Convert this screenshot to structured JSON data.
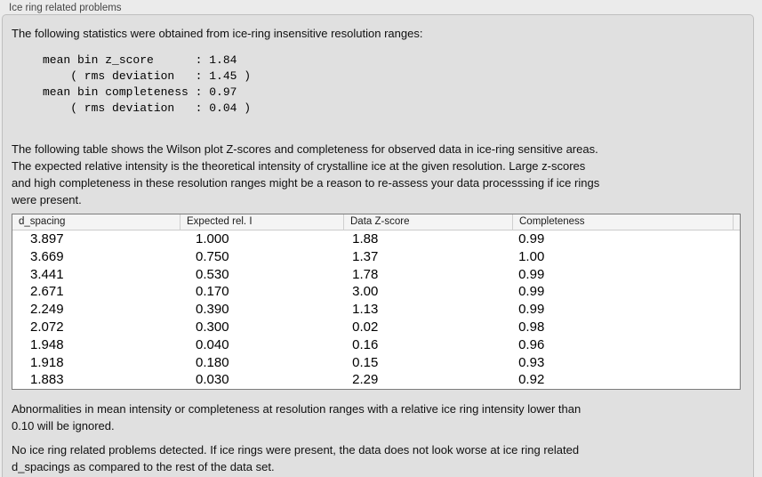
{
  "panel": {
    "title": "Ice ring related problems",
    "stats_intro": "The following statistics were obtained from ice-ring insensitive resolution ranges:",
    "stats_block": "mean bin z_score      : 1.84\n    ( rms deviation   : 1.45 )\nmean bin completeness : 0.97\n    ( rms deviation   : 0.04 )",
    "stats": {
      "mean_bin_z_score": "1.84",
      "z_score_rms_deviation": "1.45",
      "mean_bin_completeness": "0.97",
      "completeness_rms_deviation": "0.04"
    },
    "table_description": "The following table shows the Wilson plot Z-scores and completeness for observed data in ice-ring sensitive areas.\nThe expected relative intensity is the theoretical intensity of crystalline ice at the given resolution. Large z-scores\nand high completeness in these resolution ranges might be a reason to re-assess your data processsing if ice rings\nwere present.",
    "abnormalities_note": "Abnormalities in mean intensity or completeness at resolution ranges with a relative ice ring intensity lower than\n0.10 will be ignored.",
    "conclusion": "No ice ring related problems detected. If ice rings were present, the data does not look worse at ice ring related\nd_spacings as compared to the rest of the data set."
  },
  "table": {
    "columns": [
      "d_spacing",
      "Expected rel. I",
      "Data Z-score",
      "Completeness"
    ],
    "rows": [
      [
        "3.897",
        "1.000",
        "1.88",
        "0.99"
      ],
      [
        "3.669",
        "0.750",
        "1.37",
        "1.00"
      ],
      [
        "3.441",
        "0.530",
        "1.78",
        "0.99"
      ],
      [
        "2.671",
        "0.170",
        "3.00",
        "0.99"
      ],
      [
        "2.249",
        "0.390",
        "1.13",
        "0.99"
      ],
      [
        "2.072",
        "0.300",
        "0.02",
        "0.98"
      ],
      [
        "1.948",
        "0.040",
        "0.16",
        "0.96"
      ],
      [
        "1.918",
        "0.180",
        "0.15",
        "0.93"
      ],
      [
        "1.883",
        "0.030",
        "2.29",
        "0.92"
      ]
    ]
  },
  "colors": {
    "page_background": "#ebebeb",
    "groupbox_background": "#e0e0e0",
    "groupbox_border": "#bfbfbf",
    "table_border": "#7d7d7d",
    "table_header_background": "#f4f4f4",
    "text": "#101010"
  }
}
